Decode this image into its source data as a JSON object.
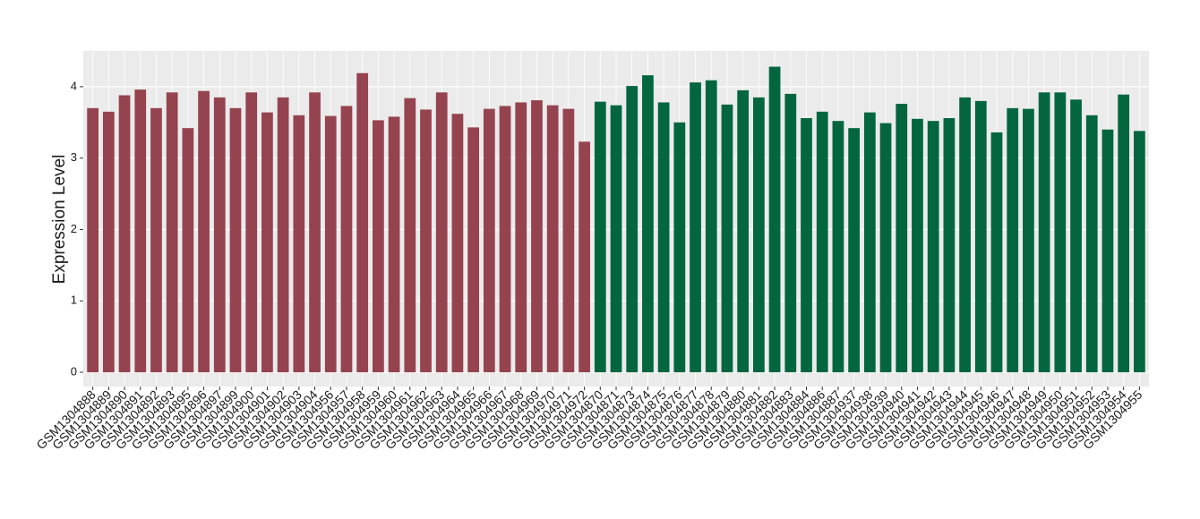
{
  "chart_data": {
    "type": "bar",
    "y_label": "Expression Level",
    "categories": [
      "GSM1304888",
      "GSM1304889",
      "GSM1304890",
      "GSM1304891",
      "GSM1304892",
      "GSM1304893",
      "GSM1304895",
      "GSM1304896",
      "GSM1304897",
      "GSM1304899",
      "GSM1304900",
      "GSM1304901",
      "GSM1304902",
      "GSM1304903",
      "GSM1304904",
      "GSM1304956",
      "GSM1304957",
      "GSM1304958",
      "GSM1304959",
      "GSM1304960",
      "GSM1304961",
      "GSM1304962",
      "GSM1304963",
      "GSM1304964",
      "GSM1304965",
      "GSM1304966",
      "GSM1304967",
      "GSM1304968",
      "GSM1304969",
      "GSM1304970",
      "GSM1304971",
      "GSM1304972",
      "GSM1304870",
      "GSM1304871",
      "GSM1304873",
      "GSM1304874",
      "GSM1304875",
      "GSM1304876",
      "GSM1304877",
      "GSM1304878",
      "GSM1304879",
      "GSM1304880",
      "GSM1304881",
      "GSM1304882",
      "GSM1304883",
      "GSM1304884",
      "GSM1304886",
      "GSM1304887",
      "GSM1304937",
      "GSM1304938",
      "GSM1304939",
      "GSM1304940",
      "GSM1304941",
      "GSM1304942",
      "GSM1304943",
      "GSM1304944",
      "GSM1304945",
      "GSM1304946",
      "GSM1304947",
      "GSM1304948",
      "GSM1304949",
      "GSM1304950",
      "GSM1304951",
      "GSM1304952",
      "GSM1304953",
      "GSM1304954",
      "GSM1304955"
    ],
    "values": [
      3.7,
      3.65,
      3.88,
      3.96,
      3.7,
      3.92,
      3.42,
      3.94,
      3.85,
      3.7,
      3.92,
      3.64,
      3.85,
      3.6,
      3.92,
      3.59,
      3.73,
      4.19,
      3.53,
      3.58,
      3.84,
      3.68,
      3.92,
      3.62,
      3.43,
      3.69,
      3.73,
      3.78,
      3.81,
      3.74,
      3.69,
      3.23,
      3.79,
      3.74,
      4.01,
      4.16,
      3.78,
      3.5,
      4.06,
      4.09,
      3.75,
      3.95,
      3.85,
      4.28,
      3.9,
      3.56,
      3.65,
      3.52,
      3.42,
      3.64,
      3.49,
      3.76,
      3.55,
      3.52,
      3.56,
      3.85,
      3.8,
      3.36,
      3.7,
      3.69,
      3.92,
      3.92,
      3.82,
      3.6,
      3.4,
      3.89,
      3.38
    ],
    "colors": [
      "#964350",
      "#964350",
      "#964350",
      "#964350",
      "#964350",
      "#964350",
      "#964350",
      "#964350",
      "#964350",
      "#964350",
      "#964350",
      "#964350",
      "#964350",
      "#964350",
      "#964350",
      "#964350",
      "#964350",
      "#964350",
      "#964350",
      "#964350",
      "#964350",
      "#964350",
      "#964350",
      "#964350",
      "#964350",
      "#964350",
      "#964350",
      "#964350",
      "#964350",
      "#964350",
      "#964350",
      "#964350",
      "#03663f",
      "#03663f",
      "#03663f",
      "#03663f",
      "#03663f",
      "#03663f",
      "#03663f",
      "#03663f",
      "#03663f",
      "#03663f",
      "#03663f",
      "#03663f",
      "#03663f",
      "#03663f",
      "#03663f",
      "#03663f",
      "#03663f",
      "#03663f",
      "#03663f",
      "#03663f",
      "#03663f",
      "#03663f",
      "#03663f",
      "#03663f",
      "#03663f",
      "#03663f",
      "#03663f",
      "#03663f",
      "#03663f",
      "#03663f",
      "#03663f",
      "#03663f",
      "#03663f",
      "#03663f",
      "#03663f"
    ],
    "ylim": [
      -0.2,
      4.5
    ],
    "yticks": [
      0,
      1,
      2,
      3,
      4
    ],
    "grid": true
  }
}
